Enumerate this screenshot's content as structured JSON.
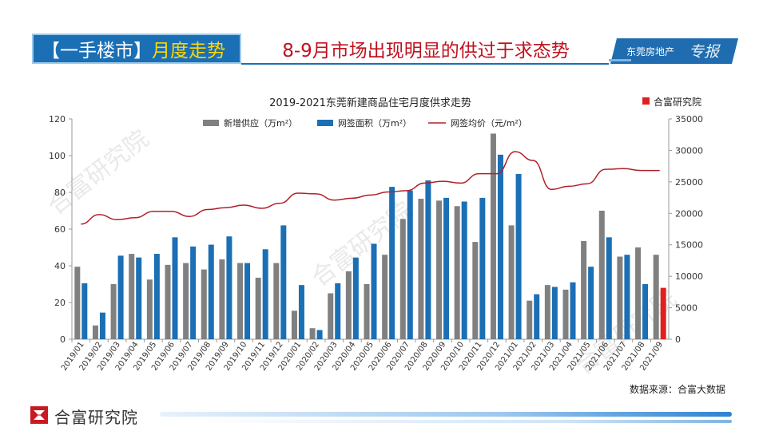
{
  "header": {
    "bracket_tag": "【一手楼市】",
    "topic": "月度走势",
    "headline": "8-9月市场出现明显的供过于求态势",
    "logo_text": "东莞房地产",
    "logo_script": "专报"
  },
  "source_note": "数据来源：合富大数据",
  "footer": {
    "brand": "合富研究院"
  },
  "colors": {
    "supply": "#808080",
    "signed_area": "#1b6fb5",
    "highlight_bar": "#e02020",
    "price_line": "#b0202a",
    "header_blue": "#1b6fb5",
    "headline_red": "#c0111f",
    "topic_yellow": "#ffd800"
  },
  "chart_data": {
    "type": "bar",
    "title": "2019-2021东莞新建商品住宅月度供求走势",
    "watermark_label": "合富研究院",
    "categories": [
      "2019/01",
      "2019/02",
      "2019/03",
      "2019/04",
      "2019/05",
      "2019/06",
      "2019/07",
      "2019/08",
      "2019/09",
      "2019/10",
      "2019/11",
      "2019/12",
      "2020/01",
      "2020/02",
      "2020/03",
      "2020/04",
      "2020/05",
      "2020/06",
      "2020/07",
      "2020/08",
      "2020/09",
      "2020/10",
      "2020/11",
      "2020/12",
      "2021/01",
      "2021/02",
      "2021/03",
      "2021/04",
      "2021/05",
      "2021/06",
      "2021/07",
      "2021/08",
      "2021/09"
    ],
    "series": [
      {
        "name": "新增供应（万m²）",
        "axis": "left",
        "kind": "bar",
        "values": [
          39.5,
          7.5,
          30,
          46.5,
          32.5,
          40.5,
          41.5,
          38,
          43.5,
          41.5,
          33.5,
          41.5,
          15.5,
          6,
          25,
          37,
          30,
          46,
          65.5,
          76.5,
          75.5,
          72.5,
          53,
          112,
          62,
          21,
          29.5,
          27,
          53.5,
          70,
          45,
          50,
          46
        ]
      },
      {
        "name": "网签面积（万m²）",
        "axis": "left",
        "kind": "bar",
        "values": [
          30.5,
          14.5,
          45.5,
          44.5,
          46.5,
          55.5,
          50.5,
          51.5,
          56,
          41.5,
          49,
          62,
          29.5,
          5,
          30.5,
          44.5,
          52,
          83,
          81,
          86.5,
          77,
          75,
          77,
          100.5,
          90,
          24.5,
          28.5,
          31,
          39.5,
          55.5,
          46,
          30,
          28
        ],
        "highlight_last": true
      },
      {
        "name": "网签均价（元/m²）",
        "axis": "right",
        "kind": "line",
        "values": [
          18300,
          19800,
          19000,
          19300,
          20300,
          20300,
          19500,
          20600,
          20900,
          21300,
          20800,
          21600,
          23200,
          23100,
          22100,
          22400,
          22900,
          23400,
          23600,
          24800,
          25100,
          24800,
          26300,
          26300,
          29800,
          28400,
          23800,
          24300,
          24700,
          27000,
          27100,
          26800,
          26800
        ]
      }
    ],
    "left_axis": {
      "ylim": [
        0,
        120
      ],
      "ticks": [
        0,
        20,
        40,
        60,
        80,
        100,
        120
      ]
    },
    "right_axis": {
      "ylim": [
        0,
        35000
      ],
      "ticks": [
        0,
        5000,
        10000,
        15000,
        20000,
        25000,
        30000,
        35000
      ]
    },
    "legend_position": "top-center",
    "grid": false
  }
}
